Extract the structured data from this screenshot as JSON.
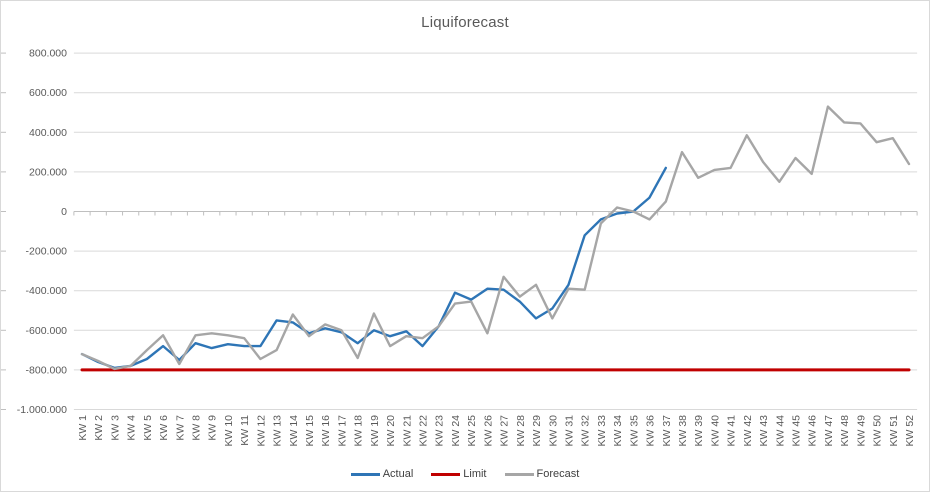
{
  "chart_data": {
    "type": "line",
    "title": "Liquiforecast",
    "categories": [
      "KW 1",
      "KW 2",
      "KW 3",
      "KW 4",
      "KW 5",
      "KW 6",
      "KW 7",
      "KW 8",
      "KW 9",
      "KW 10",
      "KW 11",
      "KW 12",
      "KW 13",
      "KW 14",
      "KW 15",
      "KW 16",
      "KW 17",
      "KW 18",
      "KW 19",
      "KW 20",
      "KW 21",
      "KW 22",
      "KW 23",
      "KW 24",
      "KW 25",
      "KW 26",
      "KW 27",
      "KW 28",
      "KW 29",
      "KW 30",
      "KW 31",
      "KW 32",
      "KW 33",
      "KW 34",
      "KW 35",
      "KW 36",
      "KW 37",
      "KW 38",
      "KW 39",
      "KW 40",
      "KW 41",
      "KW 42",
      "KW 43",
      "KW 44",
      "KW 45",
      "KW 46",
      "KW 47",
      "KW 48",
      "KW 49",
      "KW 50",
      "KW 51",
      "KW 52"
    ],
    "series": [
      {
        "name": "Actual",
        "color": "#2E75B6",
        "values": [
          -720000,
          -760000,
          -790000,
          -780000,
          -745000,
          -680000,
          -750000,
          -665000,
          -690000,
          -670000,
          -680000,
          -680000,
          -550000,
          -560000,
          -615000,
          -590000,
          -610000,
          -665000,
          -600000,
          -630000,
          -605000,
          -680000,
          -580000,
          -410000,
          -445000,
          -390000,
          -395000,
          -455000,
          -540000,
          -490000,
          -370000,
          -120000,
          -40000,
          -10000,
          0,
          70000,
          220000
        ]
      },
      {
        "name": "Limit",
        "color": "#C00000",
        "values": [
          -800000,
          -800000,
          -800000,
          -800000,
          -800000,
          -800000,
          -800000,
          -800000,
          -800000,
          -800000,
          -800000,
          -800000,
          -800000,
          -800000,
          -800000,
          -800000,
          -800000,
          -800000,
          -800000,
          -800000,
          -800000,
          -800000,
          -800000,
          -800000,
          -800000,
          -800000,
          -800000,
          -800000,
          -800000,
          -800000,
          -800000,
          -800000,
          -800000,
          -800000,
          -800000,
          -800000,
          -800000,
          -800000,
          -800000,
          -800000,
          -800000,
          -800000,
          -800000,
          -800000,
          -800000,
          -800000,
          -800000,
          -800000,
          -800000,
          -800000,
          -800000,
          -800000
        ]
      },
      {
        "name": "Forecast",
        "color": "#A6A6A6",
        "values": [
          -720000,
          -755000,
          -795000,
          -780000,
          -700000,
          -625000,
          -770000,
          -625000,
          -615000,
          -625000,
          -640000,
          -745000,
          -700000,
          -520000,
          -630000,
          -570000,
          -600000,
          -740000,
          -515000,
          -680000,
          -630000,
          -640000,
          -580000,
          -465000,
          -455000,
          -615000,
          -330000,
          -430000,
          -370000,
          -540000,
          -390000,
          -395000,
          -60000,
          20000,
          0,
          -40000,
          50000,
          300000,
          170000,
          210000,
          220000,
          385000,
          250000,
          150000,
          270000,
          190000,
          530000,
          450000,
          445000,
          350000,
          370000,
          240000
        ]
      }
    ],
    "ylim": [
      -1000000,
      800000
    ],
    "y_tick_step": 200000,
    "grid": true,
    "legend_position": "bottom"
  },
  "y_axis": {
    "labels": [
      "800.000",
      "600.000",
      "400.000",
      "200.000",
      "0",
      "-200.000",
      "-400.000",
      "-600.000",
      "-800.000",
      "-1.000.000"
    ]
  },
  "style": {
    "gridline_color": "#D9D9D9",
    "axis_color": "#BFBFBF",
    "label_color": "#595959",
    "title_color": "#595959"
  }
}
